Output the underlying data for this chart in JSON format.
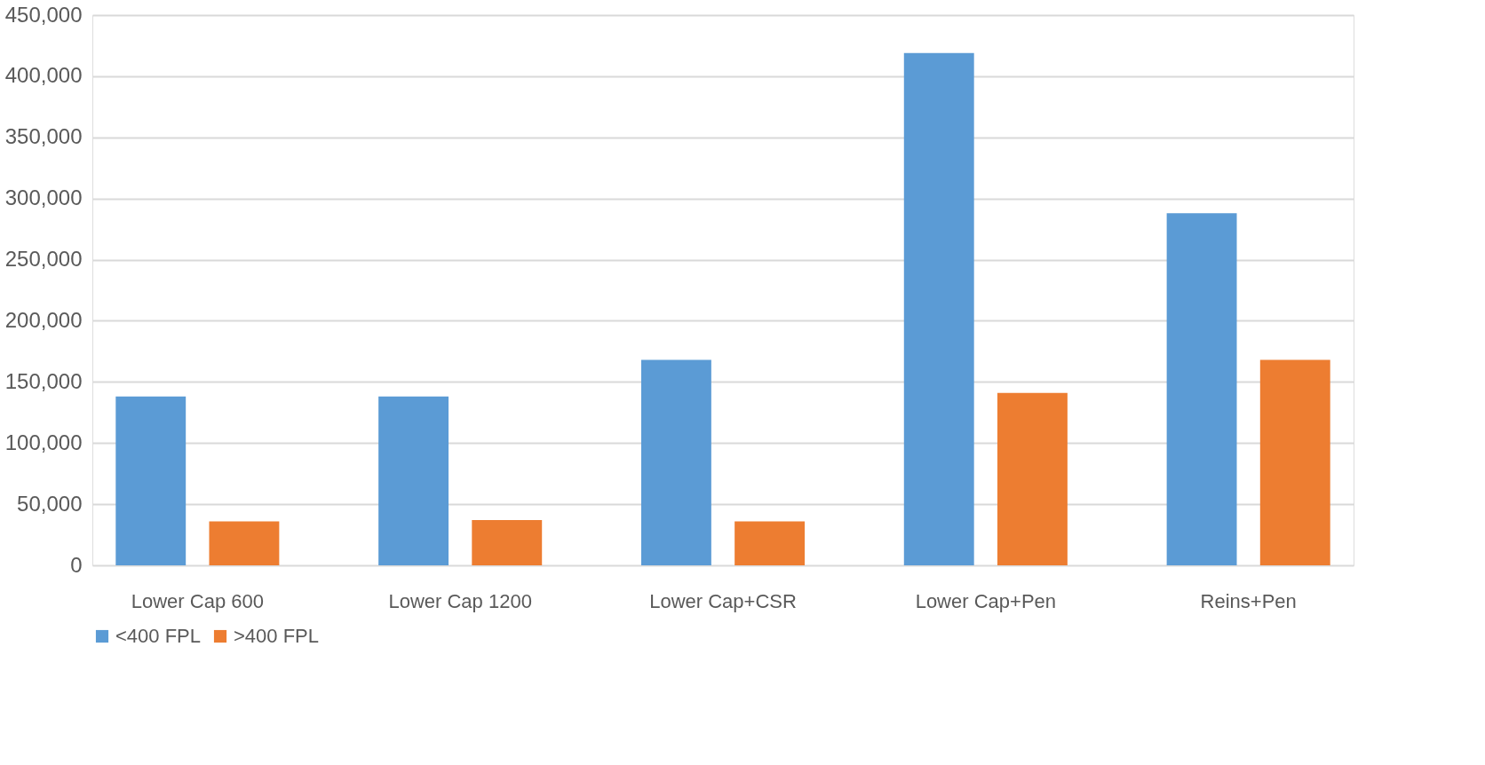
{
  "chart_data": {
    "type": "bar",
    "categories": [
      "Lower Cap 600",
      "Lower Cap 1200",
      "Lower Cap+CSR",
      "Lower Cap+Pen",
      "Reins+Pen"
    ],
    "series": [
      {
        "name": "<400 FPL",
        "color": "#5b9bd5",
        "values": [
          138000,
          138000,
          168000,
          419000,
          288000
        ]
      },
      {
        "name": ">400 FPL",
        "color": "#ed7d31",
        "values": [
          36000,
          37000,
          36000,
          141000,
          168000
        ]
      }
    ],
    "ylim": [
      0,
      450000
    ],
    "yticks": [
      {
        "value": 0,
        "label": "0"
      },
      {
        "value": 50000,
        "label": "50,000"
      },
      {
        "value": 100000,
        "label": "100,000"
      },
      {
        "value": 150000,
        "label": "150,000"
      },
      {
        "value": 200000,
        "label": "200,000"
      },
      {
        "value": 250000,
        "label": "250,000"
      },
      {
        "value": 300000,
        "label": "300,000"
      },
      {
        "value": 350000,
        "label": "350,000"
      },
      {
        "value": 400000,
        "label": "400,000"
      },
      {
        "value": 450000,
        "label": "450,000"
      }
    ],
    "grid": "y",
    "legend": "bottom"
  }
}
